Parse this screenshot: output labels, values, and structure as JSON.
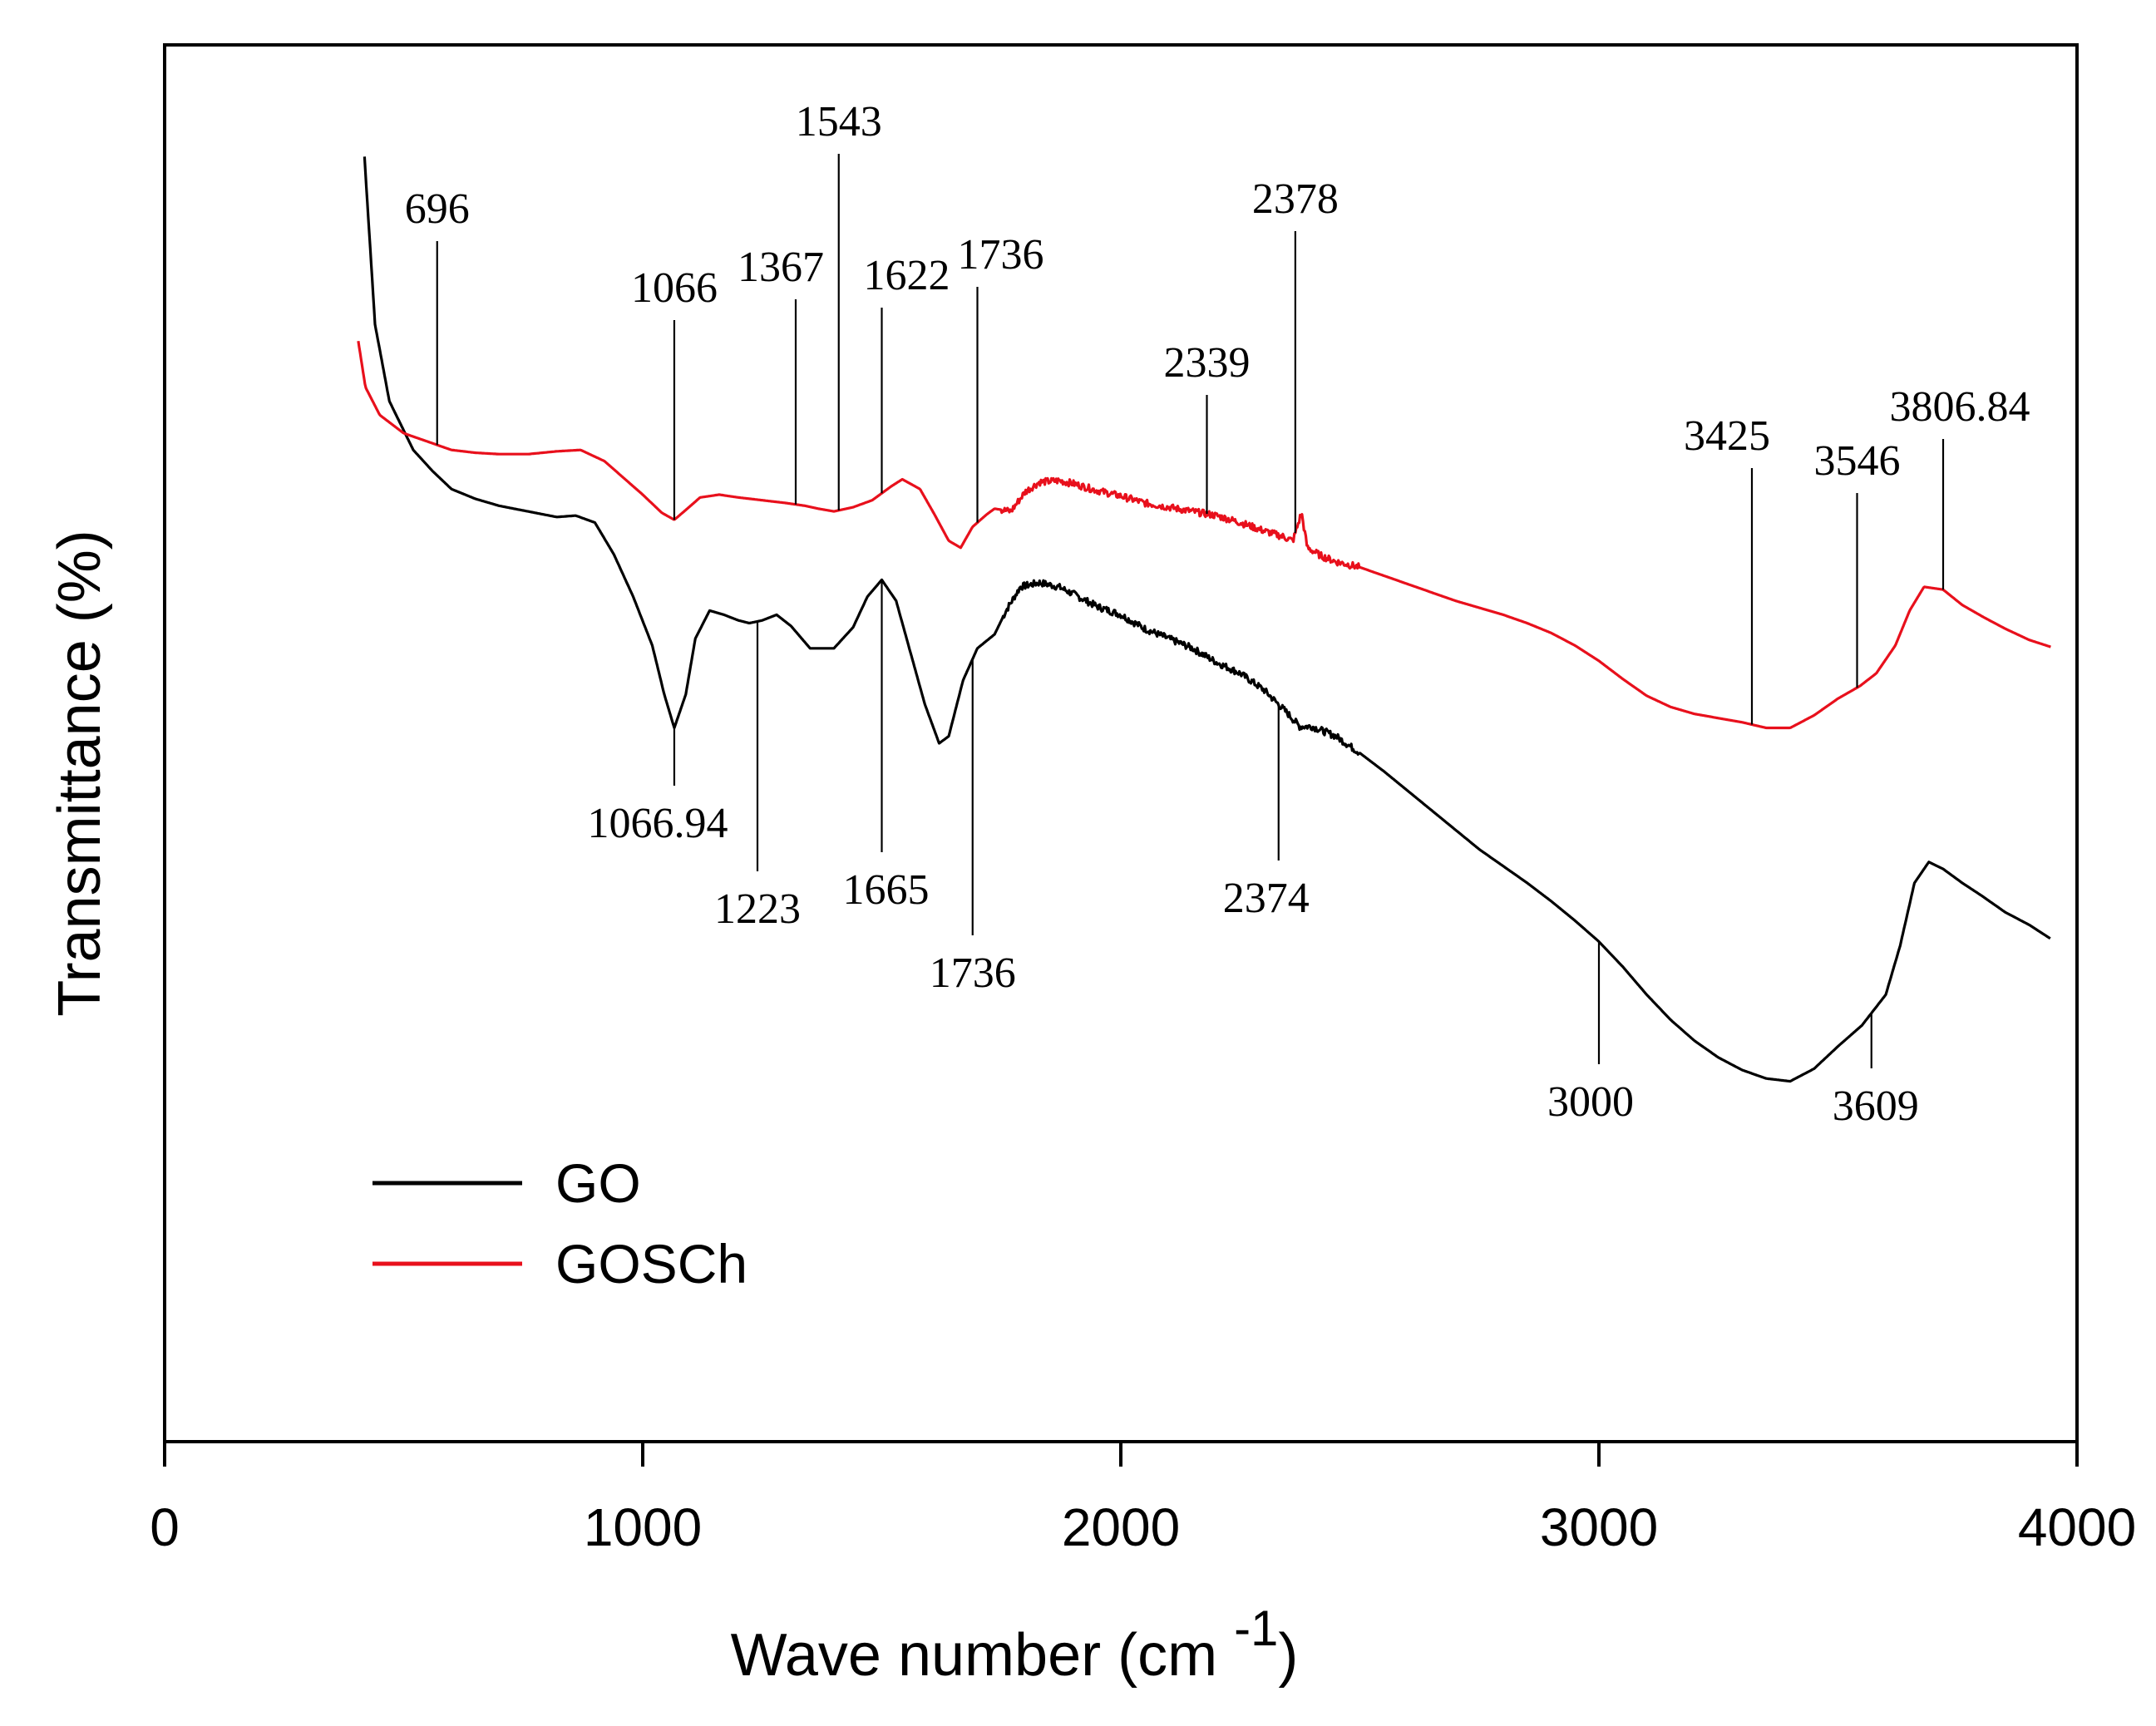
{
  "chart_data": {
    "type": "line",
    "title": "",
    "xlabel": "Wave number (cm ",
    "xlabel_sup": "-1",
    "xlabel_close": ")",
    "ylabel": "Transmittance (%)",
    "xlim": [
      0,
      4000
    ],
    "ylim": [
      0,
      100
    ],
    "x_ticks": [
      "0",
      "1000",
      "2000",
      "3000",
      "4000"
    ],
    "x_tick_values": [
      0,
      1000,
      2000,
      3000,
      4000
    ],
    "grid": false,
    "legend_position": "bottom-left",
    "series": [
      {
        "name": "GO",
        "color": "#000000",
        "points": [
          [
            418,
            92.0
          ],
          [
            440,
            80.0
          ],
          [
            470,
            74.5
          ],
          [
            520,
            71.0
          ],
          [
            560,
            69.5
          ],
          [
            600,
            68.2
          ],
          [
            650,
            67.5
          ],
          [
            700,
            67.0
          ],
          [
            760,
            66.6
          ],
          [
            820,
            66.2
          ],
          [
            860,
            66.3
          ],
          [
            900,
            65.8
          ],
          [
            940,
            63.5
          ],
          [
            980,
            60.5
          ],
          [
            1020,
            57.0
          ],
          [
            1045,
            53.5
          ],
          [
            1066,
            51.1
          ],
          [
            1090,
            53.5
          ],
          [
            1110,
            57.5
          ],
          [
            1140,
            59.5
          ],
          [
            1170,
            59.2
          ],
          [
            1200,
            58.8
          ],
          [
            1223,
            58.6
          ],
          [
            1250,
            58.8
          ],
          [
            1280,
            59.2
          ],
          [
            1310,
            58.4
          ],
          [
            1350,
            56.8
          ],
          [
            1400,
            56.8
          ],
          [
            1440,
            58.3
          ],
          [
            1470,
            60.5
          ],
          [
            1500,
            61.7
          ],
          [
            1530,
            60.2
          ],
          [
            1560,
            56.5
          ],
          [
            1590,
            52.8
          ],
          [
            1620,
            50.0
          ],
          [
            1640,
            50.5
          ],
          [
            1670,
            54.5
          ],
          [
            1700,
            56.8
          ],
          [
            1736,
            57.8
          ],
          [
            1760,
            59.5
          ],
          [
            1790,
            61.2
          ],
          [
            1830,
            61.5
          ],
          [
            1870,
            61.2
          ],
          [
            1900,
            60.7
          ],
          [
            1950,
            59.8
          ],
          [
            2000,
            59.2
          ],
          [
            2050,
            58.2
          ],
          [
            2100,
            57.5
          ],
          [
            2150,
            56.8
          ],
          [
            2200,
            55.8
          ],
          [
            2250,
            55.0
          ],
          [
            2300,
            53.8
          ],
          [
            2350,
            52.1
          ],
          [
            2374,
            51.2
          ],
          [
            2400,
            51.2
          ],
          [
            2450,
            50.5
          ],
          [
            2500,
            49.3
          ],
          [
            2550,
            48.0
          ],
          [
            2600,
            46.6
          ],
          [
            2650,
            45.2
          ],
          [
            2700,
            43.8
          ],
          [
            2750,
            42.4
          ],
          [
            2800,
            41.2
          ],
          [
            2850,
            40.0
          ],
          [
            2900,
            38.7
          ],
          [
            2950,
            37.3
          ],
          [
            3000,
            35.8
          ],
          [
            3050,
            34.0
          ],
          [
            3100,
            32.0
          ],
          [
            3150,
            30.2
          ],
          [
            3200,
            28.7
          ],
          [
            3250,
            27.5
          ],
          [
            3300,
            26.6
          ],
          [
            3350,
            26.0
          ],
          [
            3400,
            25.8
          ],
          [
            3450,
            26.7
          ],
          [
            3500,
            28.3
          ],
          [
            3550,
            29.8
          ],
          [
            3600,
            32.0
          ],
          [
            3630,
            35.5
          ],
          [
            3660,
            40.0
          ],
          [
            3690,
            41.5
          ],
          [
            3720,
            41.0
          ],
          [
            3760,
            40.0
          ],
          [
            3800,
            39.1
          ],
          [
            3850,
            37.9
          ],
          [
            3900,
            37.0
          ],
          [
            3945,
            36.0
          ]
        ]
      },
      {
        "name": "GOSCh",
        "color": "#e8101c",
        "points": [
          [
            405,
            78.8
          ],
          [
            420,
            75.5
          ],
          [
            450,
            73.5
          ],
          [
            500,
            72.2
          ],
          [
            550,
            71.6
          ],
          [
            600,
            71.0
          ],
          [
            650,
            70.8
          ],
          [
            700,
            70.7
          ],
          [
            760,
            70.7
          ],
          [
            820,
            70.9
          ],
          [
            870,
            71.0
          ],
          [
            920,
            70.2
          ],
          [
            960,
            69.0
          ],
          [
            1000,
            67.8
          ],
          [
            1040,
            66.5
          ],
          [
            1066,
            66.0
          ],
          [
            1090,
            66.7
          ],
          [
            1120,
            67.6
          ],
          [
            1160,
            67.8
          ],
          [
            1200,
            67.6
          ],
          [
            1250,
            67.4
          ],
          [
            1300,
            67.2
          ],
          [
            1340,
            67.0
          ],
          [
            1367,
            66.8
          ],
          [
            1400,
            66.6
          ],
          [
            1440,
            66.9
          ],
          [
            1480,
            67.4
          ],
          [
            1520,
            68.4
          ],
          [
            1543,
            68.9
          ],
          [
            1580,
            68.2
          ],
          [
            1610,
            66.4
          ],
          [
            1640,
            64.5
          ],
          [
            1665,
            64.0
          ],
          [
            1690,
            65.5
          ],
          [
            1720,
            66.4
          ],
          [
            1736,
            66.8
          ],
          [
            1770,
            66.6
          ],
          [
            1800,
            68.0
          ],
          [
            1830,
            68.7
          ],
          [
            1870,
            68.8
          ],
          [
            1900,
            68.6
          ],
          [
            1950,
            68.1
          ],
          [
            2000,
            67.7
          ],
          [
            2050,
            67.2
          ],
          [
            2100,
            66.9
          ],
          [
            2150,
            66.6
          ],
          [
            2200,
            66.3
          ],
          [
            2250,
            65.8
          ],
          [
            2300,
            65.2
          ],
          [
            2339,
            64.8
          ],
          [
            2360,
            64.5
          ],
          [
            2378,
            66.5
          ],
          [
            2390,
            64.0
          ],
          [
            2420,
            63.4
          ],
          [
            2450,
            63.0
          ],
          [
            2500,
            62.6
          ],
          [
            2550,
            62.0
          ],
          [
            2600,
            61.4
          ],
          [
            2650,
            60.8
          ],
          [
            2700,
            60.2
          ],
          [
            2750,
            59.7
          ],
          [
            2800,
            59.2
          ],
          [
            2850,
            58.6
          ],
          [
            2900,
            57.9
          ],
          [
            2950,
            57.0
          ],
          [
            3000,
            55.9
          ],
          [
            3050,
            54.6
          ],
          [
            3100,
            53.4
          ],
          [
            3150,
            52.6
          ],
          [
            3200,
            52.1
          ],
          [
            3250,
            51.8
          ],
          [
            3300,
            51.5
          ],
          [
            3350,
            51.1
          ],
          [
            3400,
            51.1
          ],
          [
            3450,
            52.0
          ],
          [
            3500,
            53.2
          ],
          [
            3546,
            54.1
          ],
          [
            3580,
            55.0
          ],
          [
            3620,
            57.0
          ],
          [
            3650,
            59.5
          ],
          [
            3680,
            61.2
          ],
          [
            3720,
            61.0
          ],
          [
            3760,
            59.9
          ],
          [
            3806,
            59.0
          ],
          [
            3850,
            58.2
          ],
          [
            3900,
            57.4
          ],
          [
            3945,
            56.9
          ]
        ]
      }
    ],
    "annotations": [
      {
        "label": "696",
        "x": 570,
        "series": "GOSCh",
        "side": "top"
      },
      {
        "label": "1066",
        "x": 1066,
        "series": "GOSCh",
        "side": "top"
      },
      {
        "label": "1367",
        "x": 1320,
        "series": "GOSCh",
        "side": "top"
      },
      {
        "label": "1543",
        "x": 1410,
        "series": "GOSCh",
        "side": "top"
      },
      {
        "label": "1622",
        "x": 1500,
        "series": "GOSCh",
        "side": "top"
      },
      {
        "label": "1736",
        "x": 1700,
        "series": "GOSCh",
        "side": "top"
      },
      {
        "label": "2339",
        "x": 2180,
        "series": "GOSCh",
        "side": "top"
      },
      {
        "label": "2378",
        "x": 2365,
        "series": "GOSCh",
        "side": "top"
      },
      {
        "label": "3425",
        "x": 3320,
        "series": "GOSCh",
        "side": "top"
      },
      {
        "label": "3546",
        "x": 3540,
        "series": "GOSCh",
        "side": "top"
      },
      {
        "label": "3806.84",
        "x": 3720,
        "series": "GOSCh",
        "side": "top"
      },
      {
        "label": "1066.94",
        "x": 1066,
        "series": "GO",
        "side": "bottom"
      },
      {
        "label": "1223",
        "x": 1240,
        "series": "GO",
        "side": "bottom"
      },
      {
        "label": "1665",
        "x": 1500,
        "series": "GO",
        "side": "bottom"
      },
      {
        "label": "1736",
        "x": 1690,
        "series": "GO",
        "side": "bottom"
      },
      {
        "label": "2374",
        "x": 2330,
        "series": "GO",
        "side": "bottom"
      },
      {
        "label": "3000",
        "x": 3000,
        "series": "GO",
        "side": "bottom"
      },
      {
        "label": "3609",
        "x": 3570,
        "series": "GO",
        "side": "bottom"
      }
    ]
  }
}
